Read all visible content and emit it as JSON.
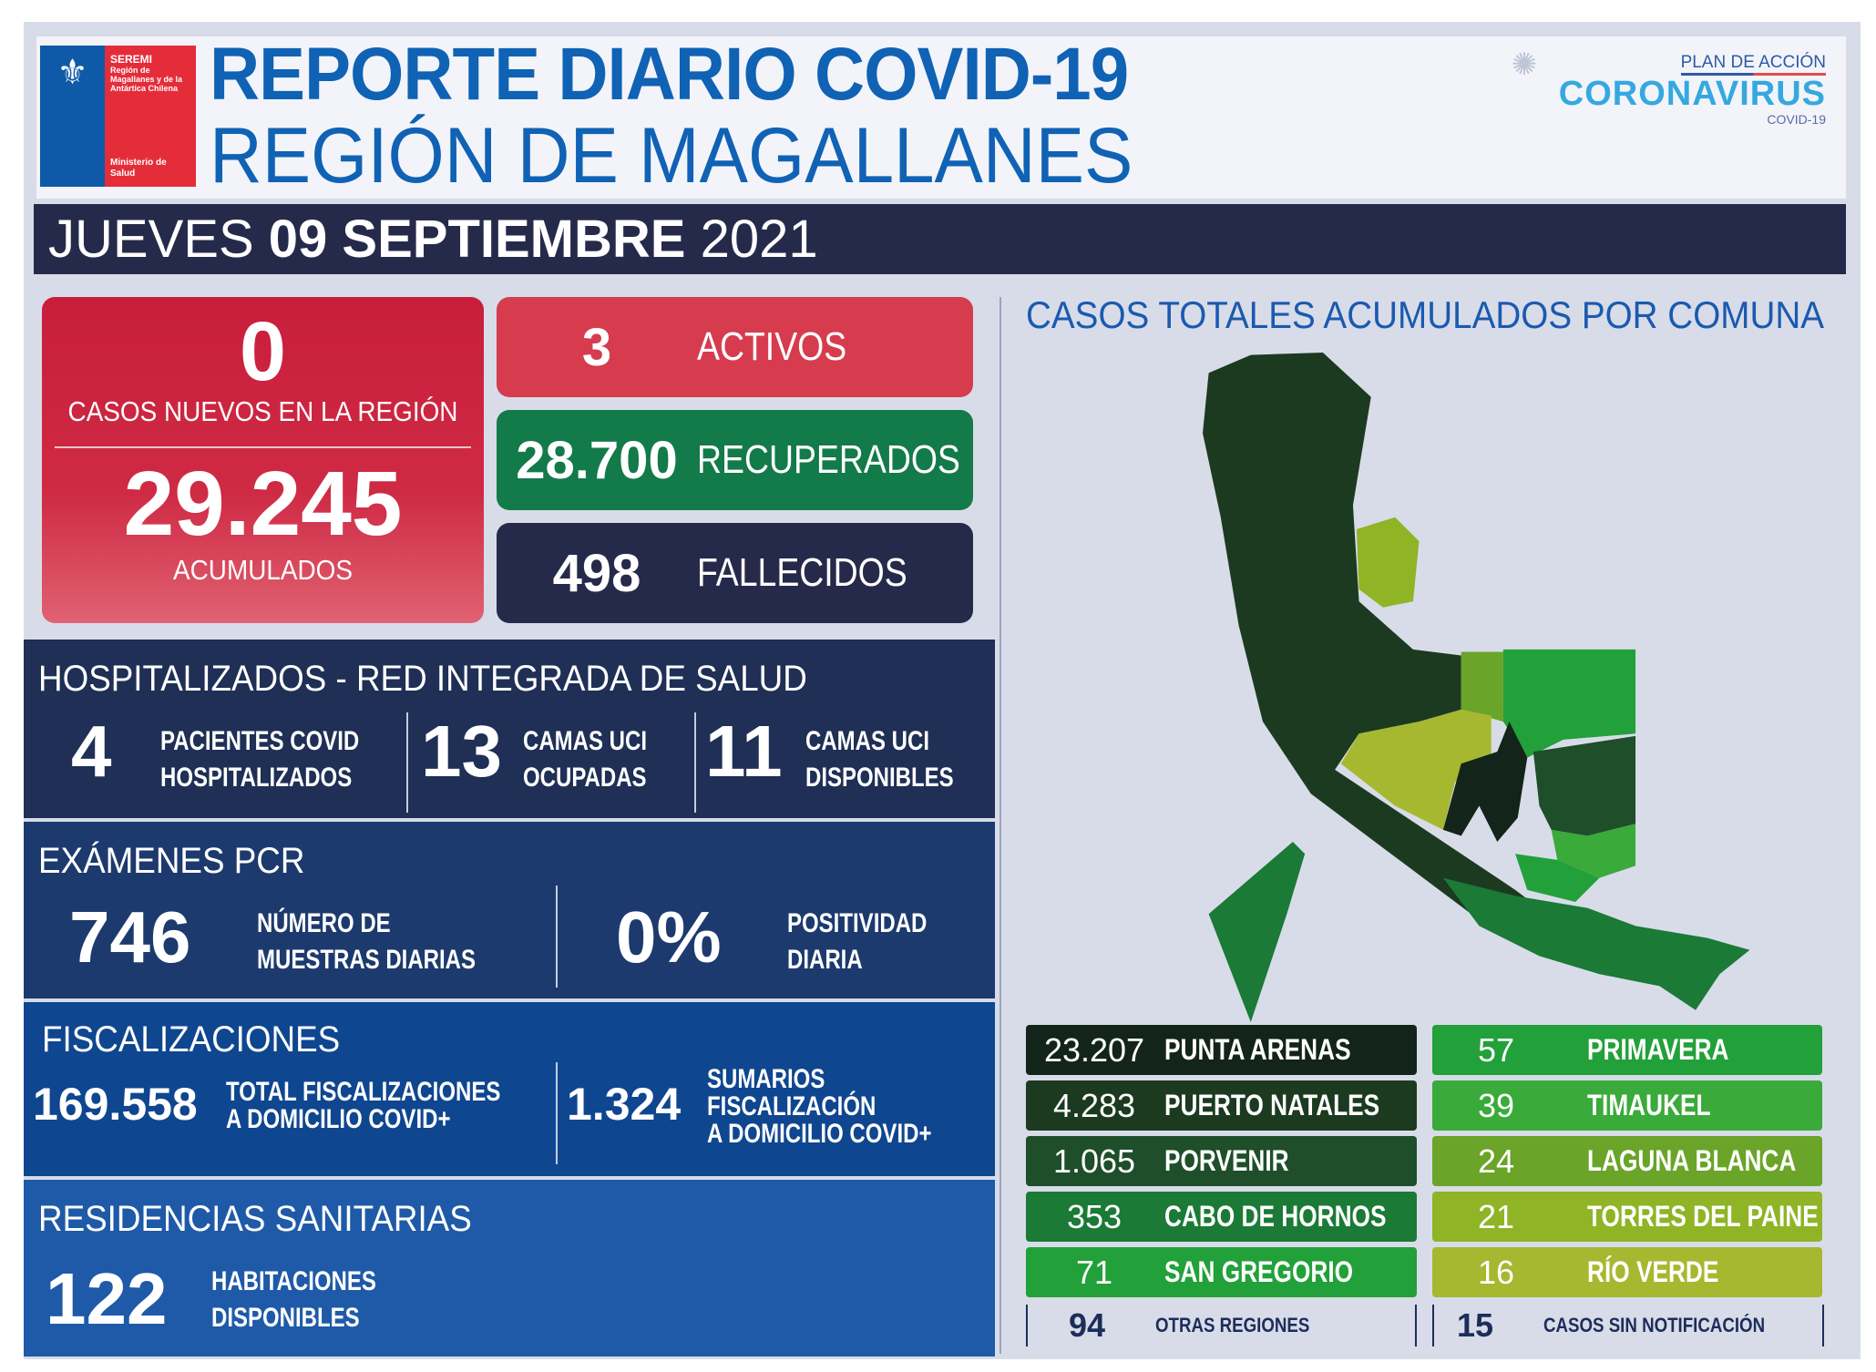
{
  "header": {
    "title_line1": "REPORTE DIARIO COVID-19",
    "title_line2": "REGIÓN DE MAGALLANES",
    "logo": {
      "seremi": "SEREMI",
      "region": "Región de Magallanes y de la Antártica Chilena",
      "ministry": "Ministerio de Salud"
    },
    "campaign": {
      "plan": "PLAN DE ACCIÓN",
      "name": "CORONAVIRUS",
      "sub": "COVID-19"
    }
  },
  "date": {
    "weekday": "JUEVES",
    "day_month": "09 SEPTIEMBRE",
    "year": "2021"
  },
  "summary": {
    "new_cases": "0",
    "new_cases_label": "CASOS NUEVOS EN LA REGIÓN",
    "accumulated": "29.245",
    "accumulated_label": "ACUMULADOS",
    "active": "3",
    "active_label": "ACTIVOS",
    "recovered": "28.700",
    "recovered_label": "RECUPERADOS",
    "deceased": "498",
    "deceased_label": "FALLECIDOS"
  },
  "hospital": {
    "title": "HOSPITALIZADOS - RED INTEGRADA DE SALUD",
    "items": [
      {
        "value": "4",
        "label1": "PACIENTES COVID",
        "label2": "HOSPITALIZADOS"
      },
      {
        "value": "13",
        "label1": "CAMAS UCI",
        "label2": "OCUPADAS"
      },
      {
        "value": "11",
        "label1": "CAMAS UCI",
        "label2": "DISPONIBLES"
      }
    ]
  },
  "pcr": {
    "title": "EXÁMENES PCR",
    "samples": "746",
    "samples_label1": "NÚMERO DE",
    "samples_label2": "MUESTRAS DIARIAS",
    "positivity": "0%",
    "positivity_label1": "POSITIVIDAD",
    "positivity_label2": "DIARIA"
  },
  "inspections": {
    "title": "FISCALIZACIONES",
    "total": "169.558",
    "total_label1": "TOTAL FISCALIZACIONES",
    "total_label2": "A DOMICILIO COVID+",
    "summaries": "1.324",
    "summaries_label1": "SUMARIOS",
    "summaries_label2": "FISCALIZACIÓN",
    "summaries_label3": "A DOMICILIO COVID+"
  },
  "residences": {
    "title": "RESIDENCIAS SANITARIAS",
    "value": "122",
    "label1": "HABITACIONES",
    "label2": "DISPONIBLES"
  },
  "map": {
    "title": "CASOS TOTALES ACUMULADOS POR COMUNA",
    "left": [
      {
        "value": "23.207",
        "name": "PUNTA ARENAS",
        "color": "#13241a"
      },
      {
        "value": "4.283",
        "name": "PUERTO NATALES",
        "color": "#1c3a20"
      },
      {
        "value": "1.065",
        "name": "PORVENIR",
        "color": "#1e4e2a"
      },
      {
        "value": "353",
        "name": "CABO DE HORNOS",
        "color": "#1a7a36"
      },
      {
        "value": "71",
        "name": "SAN GREGORIO",
        "color": "#22a03a"
      }
    ],
    "right": [
      {
        "value": "57",
        "name": "PRIMAVERA",
        "color": "#22a03a"
      },
      {
        "value": "39",
        "name": "TIMAUKEL",
        "color": "#3aaa3a"
      },
      {
        "value": "24",
        "name": "LAGUNA BLANCA",
        "color": "#6aa428"
      },
      {
        "value": "21",
        "name": "TORRES DEL PAINE",
        "color": "#8fb425"
      },
      {
        "value": "16",
        "name": "RÍO VERDE",
        "color": "#a6b830"
      }
    ],
    "other_regions": "94",
    "other_regions_label": "OTRAS REGIONES",
    "unnotified": "15",
    "unnotified_label": "CASOS SIN NOTIFICACIÓN"
  }
}
